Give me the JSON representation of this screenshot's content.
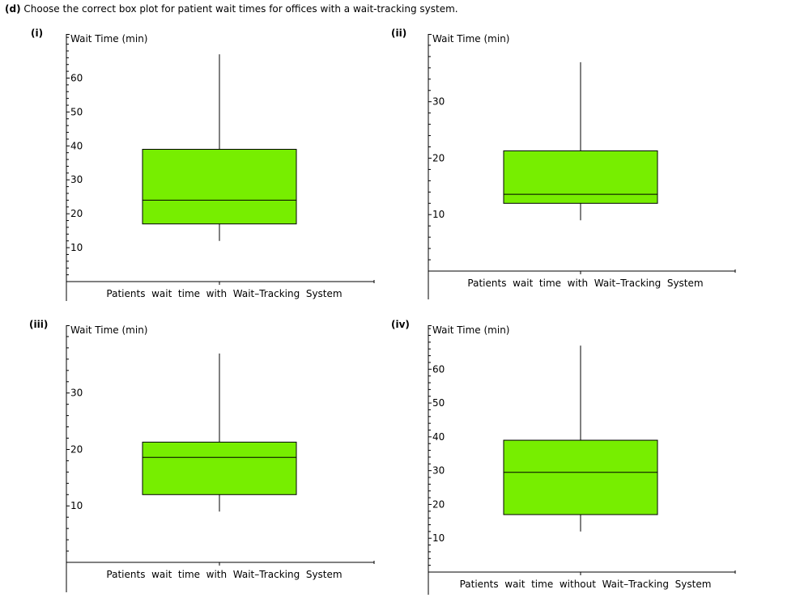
{
  "question": {
    "prefix": "(d)",
    "text": "Choose the correct box plot for patient wait times for offices with a wait-tracking system."
  },
  "colors": {
    "box_fill": "#77EE00",
    "line": "#000000"
  },
  "chart_data": [
    {
      "type": "boxplot",
      "label": "(i)",
      "ylabel": "Wait Time (min)",
      "xlabel": "Patients  wait  time  with  Wait–Tracking  System",
      "yticks": [
        10,
        20,
        30,
        40,
        50,
        60
      ],
      "ylim": [
        0,
        73
      ],
      "min": 12,
      "q1": 17,
      "median": 24,
      "q3": 39,
      "max": 67
    },
    {
      "type": "boxplot",
      "label": "(ii)",
      "ylabel": "Wait Time (min)",
      "xlabel": "Patients  wait  time  with  Wait–Tracking  System",
      "yticks": [
        10,
        20,
        30
      ],
      "ylim": [
        0,
        42
      ],
      "min": 9,
      "q1": 12,
      "median": 13.6,
      "q3": 21.3,
      "max": 37
    },
    {
      "type": "boxplot",
      "label": "(iii)",
      "ylabel": "Wait Time (min)",
      "xlabel": "Patients  wait  time  with  Wait–Tracking  System",
      "yticks": [
        10,
        20,
        30
      ],
      "ylim": [
        0,
        42
      ],
      "min": 9,
      "q1": 12,
      "median": 18.6,
      "q3": 21.3,
      "max": 37
    },
    {
      "type": "boxplot",
      "label": "(iv)",
      "ylabel": "Wait Time (min)",
      "xlabel": "Patients  wait  time  without  Wait–Tracking  System",
      "yticks": [
        10,
        20,
        30,
        40,
        50,
        60
      ],
      "ylim": [
        0,
        73
      ],
      "min": 12,
      "q1": 17,
      "median": 29.5,
      "q3": 39,
      "max": 67
    }
  ]
}
